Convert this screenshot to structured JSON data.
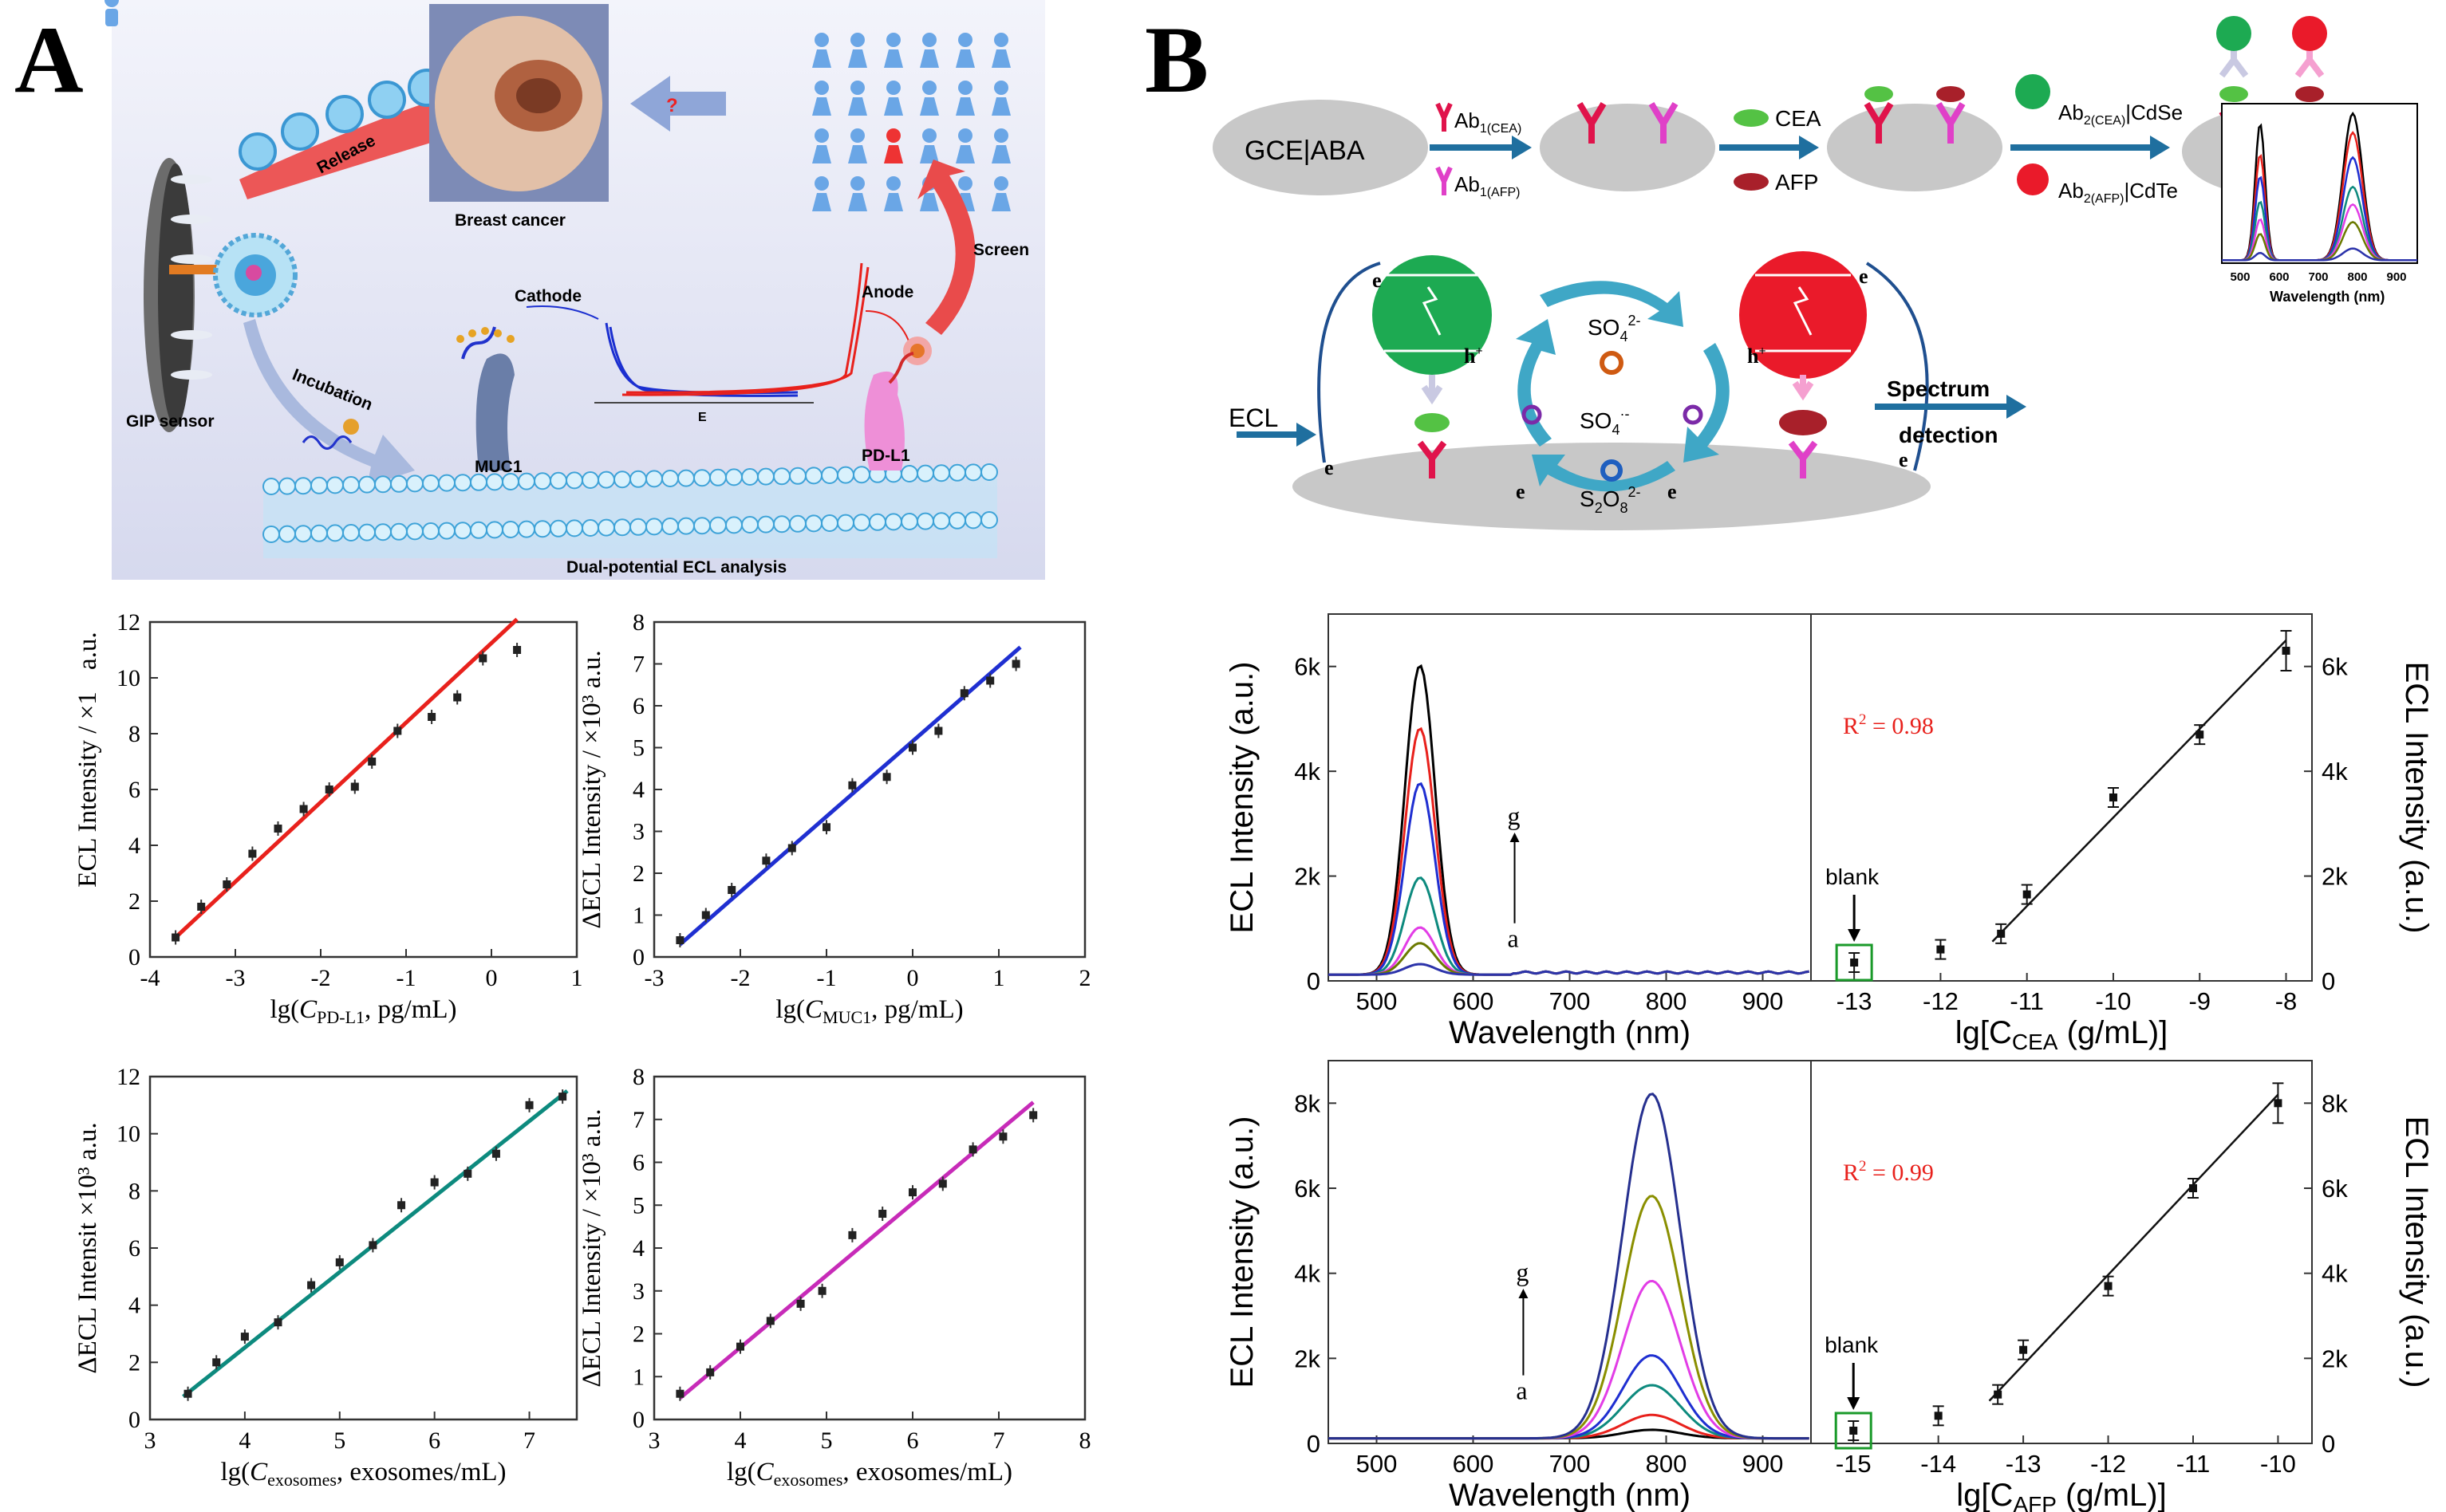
{
  "panels": {
    "A": "A",
    "B": "B"
  },
  "schemeA": {
    "release": "Release",
    "breast_cancer": "Breast cancer",
    "question": "?",
    "screen": "Screen",
    "cathode": "Cathode",
    "anode": "Anode",
    "gip_sensor": "GIP sensor",
    "incubation": "Incubation",
    "muc1": "MUC1",
    "pdl1": "PD-L1",
    "e_axis": "E",
    "dual": "Dual-potential ECL analysis"
  },
  "schemeB": {
    "gce": "GCE|ABA",
    "ab1cea": "Ab",
    "ab1cea_sub": "1(CEA)",
    "ab1afp": "Ab",
    "ab1afp_sub": "1(AFP)",
    "cea": "CEA",
    "afp": "AFP",
    "ab2cea": "Ab",
    "ab2cea_sub": "2(CEA)",
    "ab2cea_tail": "|CdSe",
    "ab2afp": "Ab",
    "ab2afp_sub": "2(AFP)",
    "ab2afp_tail": "|CdTe",
    "ecl": "ECL",
    "so4_2": "SO",
    "so4_2_sub": "4",
    "so4_2_sup": "2-",
    "so4_rad": "SO",
    "so4_rad_sub": "4",
    "so4_rad_sup": "·-",
    "s2o8": "S",
    "s2o8_sub1": "2",
    "s2o8_mid": "O",
    "s2o8_sub2": "8",
    "s2o8_sup": "2-",
    "e": "e",
    "h": "h",
    "hplus": "+",
    "spectrum1": "Spectrum",
    "spectrum2": "detection",
    "spec_xlabel": "Wavelength (nm)",
    "spec_ticks": [
      "500",
      "600",
      "700",
      "800",
      "900"
    ]
  },
  "chartsA": [
    {
      "id": "pdl1",
      "type": "scatter",
      "color": "#e8211c",
      "ylabel": "ECL Intensity / ×1",
      "yunit": "a.u.",
      "xlabel_pre": "lg(",
      "xlabel_var": "C",
      "xlabel_sub": "PD-L1",
      "xlabel_post": ", pg/mL)",
      "xlim": [
        -4,
        1
      ],
      "ylim": [
        0,
        12
      ],
      "xticks": [
        -4,
        -3,
        -2,
        -1,
        0,
        1
      ],
      "yticks": [
        0,
        2,
        4,
        6,
        8,
        10,
        12
      ],
      "x": [
        -3.7,
        -3.4,
        -3.1,
        -2.8,
        -2.5,
        -2.2,
        -1.9,
        -1.6,
        -1.4,
        -1.1,
        -0.7,
        -0.4,
        -0.1,
        0.3
      ],
      "y": [
        0.7,
        1.8,
        2.6,
        3.7,
        4.6,
        5.3,
        6.0,
        6.1,
        7.0,
        8.1,
        8.6,
        9.3,
        10.7,
        11.0
      ],
      "fit": [
        [
          -3.7,
          0.7
        ],
        [
          0.3,
          12.1
        ]
      ]
    },
    {
      "id": "muc1",
      "type": "scatter",
      "color": "#1f2fd1",
      "ylabel": "ΔECL Intensity / ×10³ a.u.",
      "xlabel_pre": "lg(",
      "xlabel_var": "C",
      "xlabel_sub": "MUC1",
      "xlabel_post": ", pg/mL)",
      "xlim": [
        -3,
        2
      ],
      "ylim": [
        0,
        8
      ],
      "xticks": [
        -3,
        -2,
        -1,
        0,
        1,
        2
      ],
      "yticks": [
        0,
        1,
        2,
        3,
        4,
        5,
        6,
        7,
        8
      ],
      "x": [
        -2.7,
        -2.4,
        -2.1,
        -1.7,
        -1.4,
        -1.0,
        -0.7,
        -0.3,
        0.0,
        0.3,
        0.6,
        0.9,
        1.2
      ],
      "y": [
        0.4,
        1.0,
        1.6,
        2.3,
        2.6,
        3.1,
        4.1,
        4.3,
        5.0,
        5.4,
        6.3,
        6.6,
        7.0
      ],
      "fit": [
        [
          -2.7,
          0.3
        ],
        [
          1.25,
          7.4
        ]
      ]
    },
    {
      "id": "exo1",
      "type": "scatter",
      "color": "#0d8a7e",
      "ylabel": "ΔECL Intensit  ×10³ a.u.",
      "xlabel_pre": "lg(",
      "xlabel_var": "C",
      "xlabel_sub": "exosomes",
      "xlabel_post": ", exosomes/mL)",
      "xlim": [
        3,
        7.5
      ],
      "ylim": [
        0,
        12
      ],
      "xticks": [
        3,
        4,
        5,
        6,
        7
      ],
      "yticks": [
        0,
        2,
        4,
        6,
        8,
        10,
        12
      ],
      "x": [
        3.4,
        3.7,
        4.0,
        4.35,
        4.7,
        5.0,
        5.35,
        5.65,
        6.0,
        6.35,
        6.65,
        7.0,
        7.35
      ],
      "y": [
        0.9,
        2.0,
        2.9,
        3.4,
        4.7,
        5.5,
        6.1,
        7.5,
        8.3,
        8.6,
        9.3,
        11.0,
        11.3
      ],
      "fit": [
        [
          3.35,
          0.8
        ],
        [
          7.4,
          11.5
        ]
      ]
    },
    {
      "id": "exo2",
      "type": "scatter",
      "color": "#c72bb8",
      "ylabel": "ΔECL Intensity / ×10³ a.u.",
      "xlabel_pre": "lg(",
      "xlabel_var": "C",
      "xlabel_sub": "exosomes",
      "xlabel_post": ", exosomes/mL)",
      "xlim": [
        3,
        8
      ],
      "ylim": [
        0,
        8
      ],
      "xticks": [
        3,
        4,
        5,
        6,
        7,
        8
      ],
      "yticks": [
        0,
        1,
        2,
        3,
        4,
        5,
        6,
        7,
        8
      ],
      "x": [
        3.3,
        3.65,
        4.0,
        4.35,
        4.7,
        4.95,
        5.3,
        5.65,
        6.0,
        6.35,
        6.7,
        7.05,
        7.4
      ],
      "y": [
        0.6,
        1.1,
        1.7,
        2.3,
        2.7,
        3.0,
        4.3,
        4.8,
        5.3,
        5.5,
        6.3,
        6.6,
        7.1
      ],
      "fit": [
        [
          3.3,
          0.5
        ],
        [
          7.4,
          7.4
        ]
      ]
    }
  ],
  "chartsB": {
    "spectra_colors": [
      "#000000",
      "#e8211c",
      "#1f2fd1",
      "#0d8a7e",
      "#e23de6",
      "#6b7a00",
      "#2c33aa"
    ],
    "cea_spectrum": {
      "ylabel": "ECL Intensity (a.u.)",
      "xlabel": "Wavelength (nm)",
      "xlim": [
        450,
        950
      ],
      "ylim": [
        0,
        7000
      ],
      "xticks": [
        500,
        600,
        700,
        800,
        900
      ],
      "yticks": [
        0,
        2000,
        4000,
        6000
      ],
      "ytick_labels": [
        "0",
        "2k",
        "4k",
        "6k"
      ],
      "peak_nm": 545,
      "peak_heights": [
        5900,
        4700,
        3650,
        1850,
        900,
        600,
        200
      ],
      "label_g": "g",
      "label_a": "a"
    },
    "cea_calib": {
      "ylabel": "ECL Intensity (a.u.)",
      "xlabel_pre": "lg[C",
      "xlabel_sub": "CEA",
      "xlabel_post": " (g/mL)]",
      "r2": "R",
      "r2_sup": "2",
      "r2_val": " = 0.98",
      "blank": "blank",
      "xlim": [
        -13.5,
        -7.7
      ],
      "ylim": [
        0,
        7000
      ],
      "xticks": [
        -13,
        -12,
        -11,
        -10,
        -9,
        -8
      ],
      "yticks": [
        0,
        2000,
        4000,
        6000
      ],
      "ytick_labels": [
        "0",
        "2k",
        "4k",
        "6k"
      ],
      "x": [
        -13,
        -12,
        -11.3,
        -11,
        -10,
        -9,
        -8
      ],
      "y": [
        350,
        600,
        900,
        1650,
        3500,
        4700,
        6300
      ],
      "fit": [
        [
          -11.4,
          750
        ],
        [
          -8.0,
          6500
        ]
      ]
    },
    "afp_spectrum": {
      "ylabel": "ECL Intensity (a.u.)",
      "xlabel": "Wavelength (nm)",
      "xlim": [
        450,
        950
      ],
      "ylim": [
        0,
        9000
      ],
      "xticks": [
        500,
        600,
        700,
        800,
        900
      ],
      "yticks": [
        0,
        2000,
        4000,
        6000,
        8000
      ],
      "ytick_labels": [
        "0",
        "2k",
        "4k",
        "6k",
        "8k"
      ],
      "peak_nm": 785,
      "peak_heights": [
        200,
        550,
        1250,
        1950,
        3700,
        5700,
        8100
      ],
      "label_g": "g",
      "label_a": "a"
    },
    "afp_calib": {
      "ylabel": "ECL Intensity (a.u.)",
      "xlabel_pre": "lg[C",
      "xlabel_sub": "AFP",
      "xlabel_post": " (g/mL)]",
      "r2": "R",
      "r2_sup": "2",
      "r2_val": " = 0.99",
      "blank": "blank",
      "xlim": [
        -15.5,
        -9.6
      ],
      "ylim": [
        0,
        9000
      ],
      "xticks": [
        -15,
        -14,
        -13,
        -12,
        -11,
        -10
      ],
      "yticks": [
        0,
        2000,
        4000,
        6000,
        8000
      ],
      "ytick_labels": [
        "0",
        "2k",
        "4k",
        "6k",
        "8k"
      ],
      "x": [
        -15,
        -14,
        -13.3,
        -13,
        -12,
        -11,
        -10
      ],
      "y": [
        300,
        650,
        1150,
        2200,
        3700,
        6000,
        8000
      ],
      "fit": [
        [
          -13.4,
          1000
        ],
        [
          -10.0,
          8200
        ]
      ]
    }
  }
}
